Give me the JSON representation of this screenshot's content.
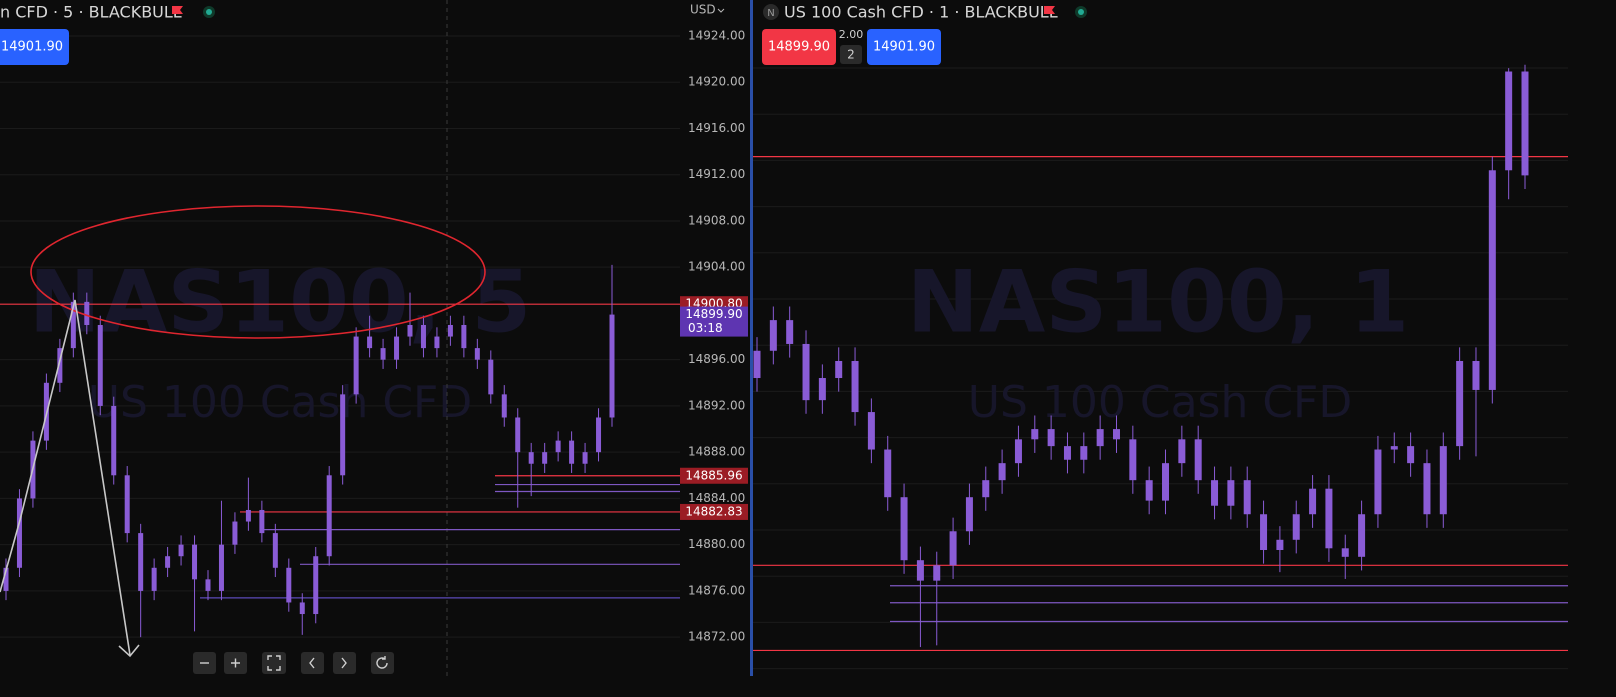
{
  "panels": [
    {
      "header": "n CFD · 5 · BLACKBULL",
      "buy_button": "14901.90",
      "currency": "USD",
      "watermark_title": "NAS100, 5",
      "watermark_subtitle": "US 100 Cash CFD",
      "ylim": [
        14868.64,
        14927.11
      ],
      "yticks": [
        {
          "value": 14924,
          "label": "14924.00"
        },
        {
          "value": 14920,
          "label": "14920.00"
        },
        {
          "value": 14916,
          "label": "14916.00"
        },
        {
          "value": 14912,
          "label": "14912.00"
        },
        {
          "value": 14908,
          "label": "14908.00"
        },
        {
          "value": 14904,
          "label": "14904.00"
        },
        {
          "value": 14896,
          "label": "14896.00"
        },
        {
          "value": 14892,
          "label": "14892.00"
        },
        {
          "value": 14888,
          "label": "14888.00"
        },
        {
          "value": 14884,
          "label": "14884.00"
        },
        {
          "value": 14880,
          "label": "14880.00"
        },
        {
          "value": 14876,
          "label": "14876.00"
        },
        {
          "value": 14872,
          "label": "14872.00"
        }
      ],
      "levels": [
        {
          "price": 14900.8,
          "color": "#f23645"
        },
        {
          "price": 14885.96,
          "color": "#f23645"
        },
        {
          "price": 14882.83,
          "color": "#f23645"
        },
        {
          "price": 14885.2,
          "color": "#7e57c2"
        },
        {
          "price": 14884.6,
          "color": "#7e57c2"
        },
        {
          "price": 14881.3,
          "color": "#7e57c2"
        },
        {
          "price": 14878.3,
          "color": "#7e57c2"
        },
        {
          "price": 14875.4,
          "color": "#5b4ab8"
        }
      ],
      "price_tags": [
        {
          "value": 14900.8,
          "label": "14900.80",
          "color": "#9b1c24"
        },
        {
          "value": 14899.9,
          "label": "14899.90",
          "timer": "03:18",
          "color": "#5e35b1"
        },
        {
          "value": 14885.96,
          "label": "14885.96",
          "color": "#9b1c24"
        },
        {
          "value": 14882.83,
          "label": "14882.83",
          "color": "#9b1c24"
        }
      ],
      "candle_color": "#8a5cd6",
      "candles": {
        "open": [
          14876,
          14878,
          14884,
          14889,
          14894,
          14897,
          14901,
          14899,
          14892,
          14886,
          14881,
          14876,
          14878,
          14879,
          14880,
          14877,
          14876,
          14880,
          14882,
          14883,
          14881,
          14878,
          14875,
          14874,
          14879,
          14886,
          14893,
          14898,
          14897,
          14896,
          14898,
          14899,
          14897,
          14898,
          14899,
          14897,
          14896,
          14893,
          14891,
          14888,
          14887,
          14888,
          14889,
          14887,
          14888,
          14891
        ],
        "high": [
          14878.8,
          14884.8,
          14889.8,
          14894.8,
          14897.8,
          14901.8,
          14901.8,
          14899.8,
          14892.8,
          14886.8,
          14881.8,
          14878.8,
          14879.8,
          14880.8,
          14880.8,
          14877.8,
          14883.8,
          14882.8,
          14885.8,
          14883.8,
          14881.8,
          14878.8,
          14875.8,
          14879.8,
          14886.8,
          14893.8,
          14898.8,
          14899.8,
          14897.8,
          14898.8,
          14901.8,
          14899.8,
          14898.8,
          14899.8,
          14899.8,
          14897.8,
          14896.8,
          14893.8,
          14891.8,
          14888.8,
          14888.8,
          14889.8,
          14889.8,
          14888.8,
          14891.8,
          14904.2
        ],
        "low": [
          14875.2,
          14877.2,
          14883.2,
          14888.2,
          14893.2,
          14896.2,
          14898.2,
          14891.2,
          14885.2,
          14880.2,
          14872,
          14875.2,
          14877.2,
          14878.2,
          14872.5,
          14875.2,
          14875.2,
          14879.2,
          14881.2,
          14880.2,
          14877.2,
          14874.2,
          14872.2,
          14873.2,
          14878.2,
          14885.2,
          14892.2,
          14896.2,
          14895.2,
          14895.2,
          14897.2,
          14896.2,
          14896.2,
          14897.2,
          14896.2,
          14895.2,
          14892.2,
          14890.2,
          14883.2,
          14884.2,
          14886.2,
          14887.2,
          14886.2,
          14886.2,
          14887.2,
          14890.2
        ],
        "close": [
          14878,
          14884,
          14889,
          14894,
          14897,
          14901,
          14899,
          14892,
          14886,
          14881,
          14876,
          14878,
          14879,
          14880,
          14877,
          14876,
          14880,
          14882,
          14883,
          14881,
          14878,
          14875,
          14874,
          14879,
          14886,
          14893,
          14898,
          14897,
          14896,
          14898,
          14899,
          14897,
          14898,
          14899,
          14897,
          14896,
          14893,
          14891,
          14888,
          14887,
          14888,
          14889,
          14887,
          14888,
          14891,
          14899.9
        ]
      }
    },
    {
      "badge": "N",
      "header": "US 100 Cash CFD · 1 · BLACKBULL",
      "sell_button": "14899.90",
      "spread": "2.00",
      "quantity": "2",
      "buy_button": "14901.90",
      "watermark_title": "NAS100, 1",
      "watermark_subtitle": "US 100 Cash CFD",
      "ylim": [
        14870.5,
        14910.2
      ],
      "levels": [
        {
          "price": 14901.0,
          "color": "#f23645"
        },
        {
          "price": 14877.0,
          "color": "#f23645"
        },
        {
          "price": 14872.0,
          "color": "#f23645"
        },
        {
          "price": 14875.8,
          "color": "#7e57c2"
        },
        {
          "price": 14874.8,
          "color": "#7e57c2"
        },
        {
          "price": 14873.7,
          "color": "#7e57c2"
        }
      ],
      "candle_color": "#8a5cd6",
      "candles": {
        "open": [
          14888,
          14889.6,
          14891.4,
          14890,
          14886.7,
          14888,
          14889,
          14886,
          14883.8,
          14881,
          14877.3,
          14876.1,
          14877,
          14879,
          14881,
          14882,
          14883,
          14884.4,
          14885,
          14884,
          14883.2,
          14884,
          14885,
          14884.4,
          14882,
          14880.8,
          14883,
          14884.4,
          14882,
          14880.5,
          14882,
          14880,
          14877.9,
          14878.5,
          14880,
          14881.5,
          14878,
          14877.5,
          14880,
          14883.8,
          14884,
          14883,
          14880,
          14884,
          14889,
          14887.3,
          14900.2,
          14906
        ],
        "high": [
          14890.4,
          14892.2,
          14892.2,
          14890.8,
          14888.8,
          14889.8,
          14889.8,
          14886.8,
          14884.6,
          14881.8,
          14878.1,
          14877.8,
          14879.8,
          14881.8,
          14882.8,
          14883.8,
          14885.2,
          14885.8,
          14885.8,
          14884.8,
          14884.8,
          14885.8,
          14885.8,
          14885.2,
          14882.8,
          14883.8,
          14885.2,
          14885.2,
          14882.8,
          14882.8,
          14882.8,
          14880.8,
          14879.3,
          14880.8,
          14882.3,
          14882.3,
          14878.8,
          14880.8,
          14884.6,
          14884.8,
          14884.8,
          14883.8,
          14884.8,
          14889.8,
          14889.8,
          14901,
          14906.2,
          14906.4
        ],
        "low": [
          14887.2,
          14888.8,
          14889.2,
          14885.9,
          14885.9,
          14887.2,
          14885.2,
          14883,
          14880.2,
          14876.5,
          14872.2,
          14872.3,
          14876.2,
          14878.2,
          14880.2,
          14881.2,
          14882.2,
          14883.6,
          14883.2,
          14882.4,
          14882.4,
          14883.2,
          14883.6,
          14881.2,
          14880,
          14880,
          14882.2,
          14881.2,
          14879.7,
          14879.7,
          14879.2,
          14877.1,
          14876.6,
          14877.7,
          14879.2,
          14877.2,
          14876.2,
          14876.7,
          14879.2,
          14883,
          14882.2,
          14879.2,
          14879.2,
          14883.2,
          14883.4,
          14886.5,
          14898.5,
          14899.1
        ],
        "close": [
          14889.6,
          14891.4,
          14890,
          14886.7,
          14888,
          14889,
          14886,
          14883.8,
          14881,
          14877.3,
          14876.1,
          14877,
          14879,
          14881,
          14882,
          14883,
          14884.4,
          14885,
          14884,
          14883.2,
          14884,
          14885,
          14884.4,
          14882,
          14880.8,
          14883,
          14884.4,
          14882,
          14880.5,
          14882,
          14880,
          14877.9,
          14878.5,
          14880,
          14881.5,
          14878,
          14877.5,
          14880,
          14883.8,
          14884,
          14883,
          14880,
          14884,
          14889,
          14887.3,
          14900.2,
          14906,
          14899.9
        ]
      }
    }
  ]
}
